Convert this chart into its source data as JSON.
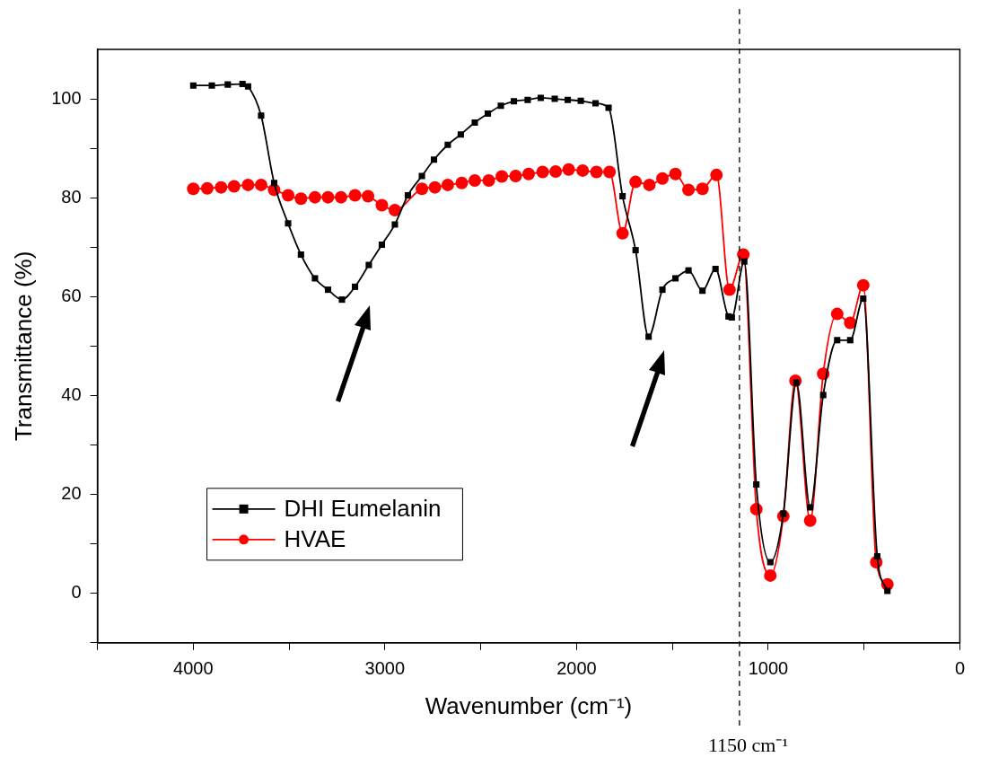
{
  "chart_data": {
    "type": "line",
    "xlabel": "Wavenumber (cm⁻¹)",
    "ylabel": "Transmittance (%)",
    "xlim": [
      4500,
      0
    ],
    "xticks": [
      {
        "value": 4500,
        "label": null
      },
      4000,
      {
        "value": 3500,
        "label": null
      },
      3000,
      {
        "value": 2500,
        "label": null
      },
      2000,
      {
        "value": 1500,
        "label": null
      },
      1000,
      {
        "value": 500,
        "label": null
      },
      0
    ],
    "ylim": [
      -10,
      110
    ],
    "yticks": [
      {
        "value": -10,
        "label": null
      },
      0,
      {
        "value": 10,
        "label": null
      },
      20,
      {
        "value": 30,
        "label": null
      },
      40,
      {
        "value": 50,
        "label": null
      },
      60,
      {
        "value": 70,
        "label": null
      },
      80,
      {
        "value": 90,
        "label": null
      },
      100
    ],
    "grid": false,
    "legend": "bottom left",
    "line_style": "solid",
    "series": [
      {
        "name": "DHI Eumelanin",
        "color": "#000000",
        "marker": "square",
        "x": [
          4000,
          3903,
          3820,
          3743,
          3714,
          3646,
          3578,
          3505,
          3438,
          3365,
          3297,
          3224,
          3156,
          3084,
          3016,
          2948,
          2880,
          2807,
          2744,
          2672,
          2604,
          2531,
          2463,
          2395,
          2327,
          2255,
          2187,
          2114,
          2046,
          1978,
          1901,
          1833,
          1760,
          1692,
          1624,
          1552,
          1484,
          1416,
          1343,
          1275,
          1207,
          1190,
          1125,
          1062,
          989,
          921,
          853,
          781,
          713,
          640,
          572,
          504,
          431,
          378
        ],
        "values": [
          102.7,
          102.7,
          102.9,
          103,
          102.5,
          96.6,
          83,
          74.8,
          68.5,
          63.7,
          61.4,
          59.4,
          62,
          66.4,
          70.5,
          74.6,
          80.5,
          84.4,
          87.7,
          90.7,
          92.8,
          95.2,
          97,
          98.6,
          99.5,
          99.8,
          100.2,
          100,
          99.8,
          99.6,
          99.1,
          98.2,
          80.3,
          69.4,
          51.9,
          61.4,
          63.7,
          65.3,
          61.2,
          65.6,
          56,
          55.8,
          67.1,
          22,
          6.3,
          16.1,
          42.6,
          17.4,
          40.1,
          51.2,
          51.2,
          59.6,
          7.5,
          0.5
        ]
      },
      {
        "name": "HVAE",
        "color": "#ff0000",
        "marker": "circle",
        "x": [
          4000,
          3927,
          3855,
          3787,
          3714,
          3646,
          3578,
          3505,
          3438,
          3365,
          3297,
          3229,
          3156,
          3088,
          3016,
          2948,
          2807,
          2739,
          2672,
          2599,
          2531,
          2458,
          2390,
          2318,
          2250,
          2177,
          2109,
          2041,
          1968,
          1896,
          1828,
          1760,
          1692,
          1620,
          1552,
          1484,
          1416,
          1343,
          1270,
          1202,
          1130,
          1062,
          989,
          921,
          858,
          781,
          713,
          640,
          572,
          504,
          436,
          378
        ],
        "values": [
          81.8,
          81.9,
          82.1,
          82.3,
          82.6,
          82.6,
          81.6,
          80.5,
          79.8,
          80.1,
          80.1,
          80.1,
          80.5,
          80.3,
          78.5,
          77.5,
          81.8,
          82.1,
          82.6,
          83,
          83.5,
          83.5,
          84.3,
          84.4,
          84.8,
          85.2,
          85.3,
          85.7,
          85.5,
          85.2,
          85.2,
          72.8,
          83.2,
          82.6,
          83.9,
          84.8,
          81.6,
          81.8,
          84.6,
          61.4,
          68.5,
          17,
          3.6,
          15.6,
          43,
          14.7,
          44.4,
          56.5,
          54.7,
          62.3,
          6.3,
          1.8
        ]
      }
    ],
    "ref_lines": [
      {
        "axis": "x",
        "value": 1150,
        "label": "1150 cm⁻¹",
        "color": "#000000",
        "line_style": "dashed"
      }
    ]
  }
}
